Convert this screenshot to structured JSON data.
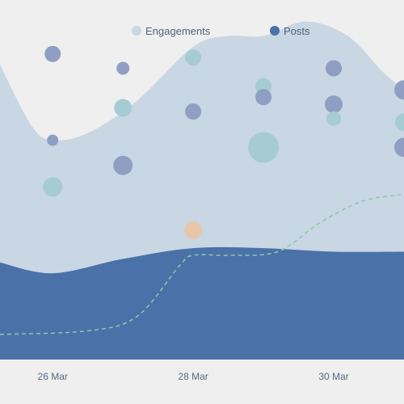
{
  "chart_data": {
    "type": "area",
    "legend": {
      "placement": "top-center",
      "entries": [
        {
          "label": "Engagements",
          "color": "#c9d6e3"
        },
        {
          "label": "Posts",
          "color": "#4a72a9"
        }
      ]
    },
    "x_ticks": [
      "26 Mar",
      "28 Mar",
      "30 Mar"
    ],
    "x_tick_values": [
      1,
      3,
      5
    ],
    "x_domain": [
      0.25,
      6.0
    ],
    "y_domain": [
      0,
      100
    ],
    "grid": false,
    "series": [
      {
        "name": "Engagements",
        "kind": "area",
        "color": "#c9d6e3",
        "points": [
          [
            0.25,
            82
          ],
          [
            0.7,
            65
          ],
          [
            1.0,
            61
          ],
          [
            1.5,
            63
          ],
          [
            2.2,
            72
          ],
          [
            3.0,
            87
          ],
          [
            3.5,
            90
          ],
          [
            4.0,
            90
          ],
          [
            4.6,
            94
          ],
          [
            5.2,
            90
          ],
          [
            5.7,
            80
          ],
          [
            6.0,
            75
          ]
        ]
      },
      {
        "name": "Posts",
        "kind": "area",
        "color": "#4a72a9",
        "points": [
          [
            0.25,
            27
          ],
          [
            1.0,
            24
          ],
          [
            2.0,
            28
          ],
          [
            3.0,
            31
          ],
          [
            4.0,
            31
          ],
          [
            5.0,
            30
          ],
          [
            6.0,
            30
          ]
        ]
      }
    ],
    "trend_line": {
      "kind": "dashed-line",
      "color": "#8cc9a4",
      "points": [
        [
          0.25,
          7
        ],
        [
          1.5,
          8
        ],
        [
          2.2,
          12
        ],
        [
          2.8,
          26
        ],
        [
          3.0,
          29
        ],
        [
          3.5,
          29
        ],
        [
          4.2,
          30
        ],
        [
          4.8,
          38
        ],
        [
          5.4,
          44
        ],
        [
          6.0,
          46
        ]
      ]
    },
    "bubbles": [
      {
        "x": 1.0,
        "y": 85,
        "r": 10,
        "color": "#8f9ec2"
      },
      {
        "x": 1.0,
        "y": 61,
        "r": 7,
        "color": "#8f9ec2"
      },
      {
        "x": 1.0,
        "y": 48,
        "r": 12,
        "color": "#a5cbd3"
      },
      {
        "x": 2.0,
        "y": 81,
        "r": 8,
        "color": "#8f9ec2"
      },
      {
        "x": 2.0,
        "y": 70,
        "r": 11,
        "color": "#a5cbd3"
      },
      {
        "x": 2.0,
        "y": 54,
        "r": 12,
        "color": "#8f9ec2"
      },
      {
        "x": 3.0,
        "y": 84,
        "r": 10,
        "color": "#a5cbd3"
      },
      {
        "x": 3.0,
        "y": 69,
        "r": 10,
        "color": "#8f9ec2"
      },
      {
        "x": 3.0,
        "y": 36,
        "r": 11,
        "color": "#e8c7a8"
      },
      {
        "x": 4.0,
        "y": 76,
        "r": 10,
        "color": "#a5cbd3"
      },
      {
        "x": 4.0,
        "y": 73,
        "r": 10,
        "color": "#8f9ec2"
      },
      {
        "x": 4.0,
        "y": 59,
        "r": 19,
        "color": "#a5cbd3"
      },
      {
        "x": 5.0,
        "y": 81,
        "r": 10,
        "color": "#8f9ec2"
      },
      {
        "x": 5.0,
        "y": 71,
        "r": 11,
        "color": "#8f9ec2"
      },
      {
        "x": 5.0,
        "y": 67,
        "r": 9,
        "color": "#a5cbd3"
      },
      {
        "x": 6.0,
        "y": 75,
        "r": 12,
        "color": "#8f9ec2"
      },
      {
        "x": 6.0,
        "y": 66,
        "r": 11,
        "color": "#a5cbd3"
      },
      {
        "x": 6.0,
        "y": 59,
        "r": 12,
        "color": "#8f9ec2"
      }
    ]
  }
}
